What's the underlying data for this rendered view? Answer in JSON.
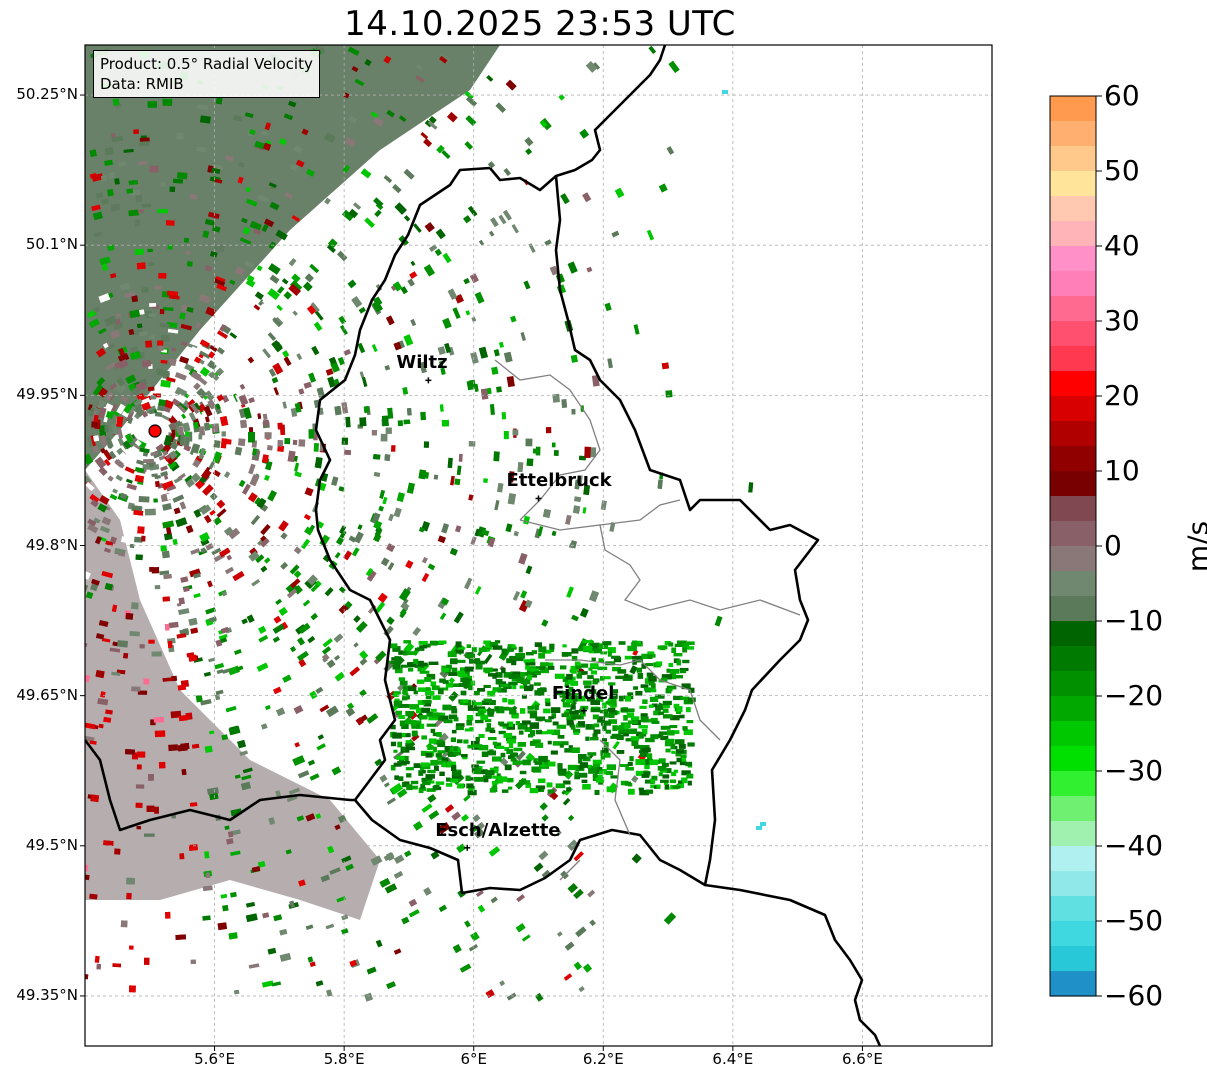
{
  "title": "14.10.2025 23:53 UTC",
  "info": {
    "product": "Product: 0.5° Radial Velocity",
    "source": "Data: RMIB"
  },
  "axes": {
    "lat_ticks": [
      "50.25°N",
      "50.1°N",
      "49.95°N",
      "49.8°N",
      "49.65°N",
      "49.5°N",
      "49.35°N"
    ],
    "lon_ticks": [
      "5.6°E",
      "5.8°E",
      "6°E",
      "6.2°E",
      "6.4°E",
      "6.6°E"
    ],
    "lat_values": [
      50.25,
      50.1,
      49.95,
      49.8,
      49.65,
      49.5,
      49.35
    ],
    "lon_values": [
      5.6,
      5.8,
      6.0,
      6.2,
      6.4,
      6.6
    ],
    "lon_range": [
      5.4,
      6.8
    ],
    "lat_range": [
      49.3,
      50.3
    ],
    "grid": true
  },
  "cities": [
    {
      "name": "Wiltz",
      "lon": 5.93,
      "lat": 49.965
    },
    {
      "name": "Ettelbruck",
      "lon": 6.1,
      "lat": 49.847
    },
    {
      "name": "Findel",
      "lon": 6.17,
      "lat": 49.635
    },
    {
      "name": "Esch/Alzette",
      "lon": 5.99,
      "lat": 49.498
    }
  ],
  "radar_site": {
    "lon": 5.505,
    "lat": 49.914
  },
  "colorbar": {
    "unit": "m/s",
    "min": -60,
    "max": 60,
    "tick_labels": [
      "60",
      "50",
      "40",
      "30",
      "20",
      "10",
      "0",
      "−10",
      "−20",
      "−30",
      "−40",
      "−50",
      "−60"
    ],
    "tick_values": [
      60,
      50,
      40,
      30,
      20,
      10,
      0,
      -10,
      -20,
      -30,
      -40,
      -50,
      -60
    ],
    "colors_top_to_bottom": [
      "#ff9a4e",
      "#ffb070",
      "#ffc98c",
      "#ffe49a",
      "#ffc8b0",
      "#ffb4b8",
      "#ff90c8",
      "#ff80b8",
      "#ff6a90",
      "#ff5070",
      "#ff3a50",
      "#ff0000",
      "#d80000",
      "#b00000",
      "#900000",
      "#780000",
      "#804850",
      "#8a6068",
      "#8a7878",
      "#708870",
      "#5a7a5a",
      "#006400",
      "#007a00",
      "#009000",
      "#00a800",
      "#00c800",
      "#00e000",
      "#30f030",
      "#70f070",
      "#a0f0b0",
      "#b0f0f0",
      "#90e8e8",
      "#60e0e0",
      "#40d8e0",
      "#28c8d8",
      "#2090c8"
    ]
  },
  "colors": {
    "approaching_green": "#00a000",
    "receding_red": "#cc0000",
    "near_zero_gray": "#7a8a7a",
    "border": "#000000",
    "canton_border": "#808080",
    "radar_marker": "#ff0000"
  }
}
